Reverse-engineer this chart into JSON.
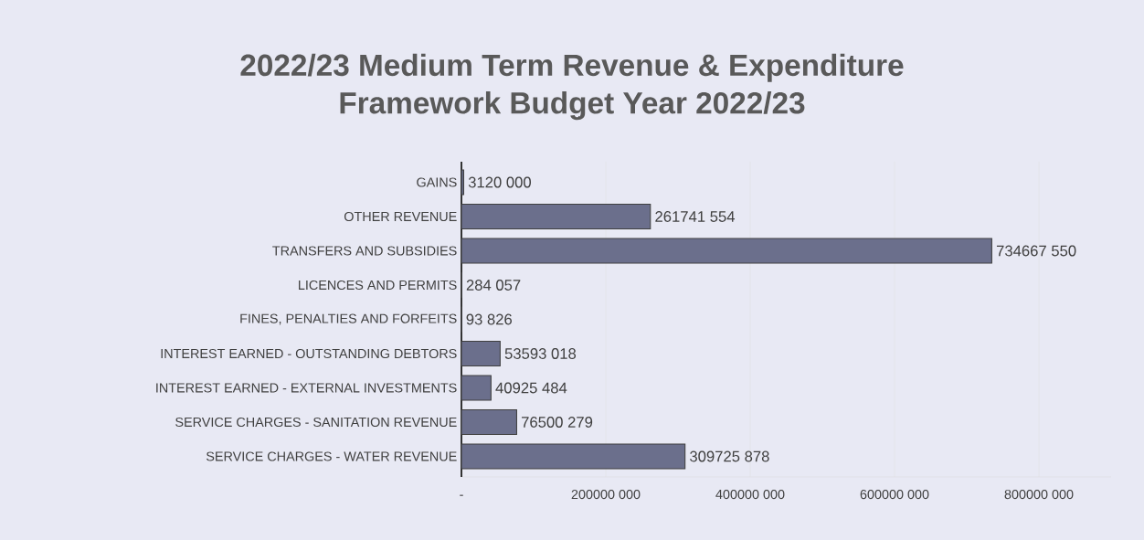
{
  "chart_data": {
    "type": "bar",
    "orientation": "horizontal",
    "title": "2022/23 Medium Term Revenue & Expenditure\nFramework Budget Year 2022/23",
    "categories": [
      "GAINS",
      "OTHER REVENUE",
      "TRANSFERS AND SUBSIDIES",
      "LICENCES AND PERMITS",
      "FINES, PENALTIES AND FORFEITS",
      "INTEREST EARNED - OUTSTANDING DEBTORS",
      "INTEREST EARNED - EXTERNAL INVESTMENTS",
      "SERVICE CHARGES - SANITATION REVENUE",
      "SERVICE CHARGES - WATER REVENUE"
    ],
    "values": [
      3120000,
      261741554,
      734667550,
      284057,
      93826,
      53593018,
      40925484,
      76500279,
      309725878
    ],
    "value_labels": [
      "3120 000",
      "261741 554",
      "734667 550",
      "284 057",
      "93 826",
      "53593 018",
      "40925 484",
      "76500 279",
      "309725 878"
    ],
    "color": "#6b6f8c",
    "xlim": [
      0,
      900000000
    ],
    "xticks": [
      {
        "value": 0,
        "label": "-"
      },
      {
        "value": 200000000,
        "label": "200000 000"
      },
      {
        "value": 400000000,
        "label": "400000 000"
      },
      {
        "value": 600000000,
        "label": "600000 000"
      },
      {
        "value": 800000000,
        "label": "800000 000"
      }
    ],
    "grid": "x"
  }
}
